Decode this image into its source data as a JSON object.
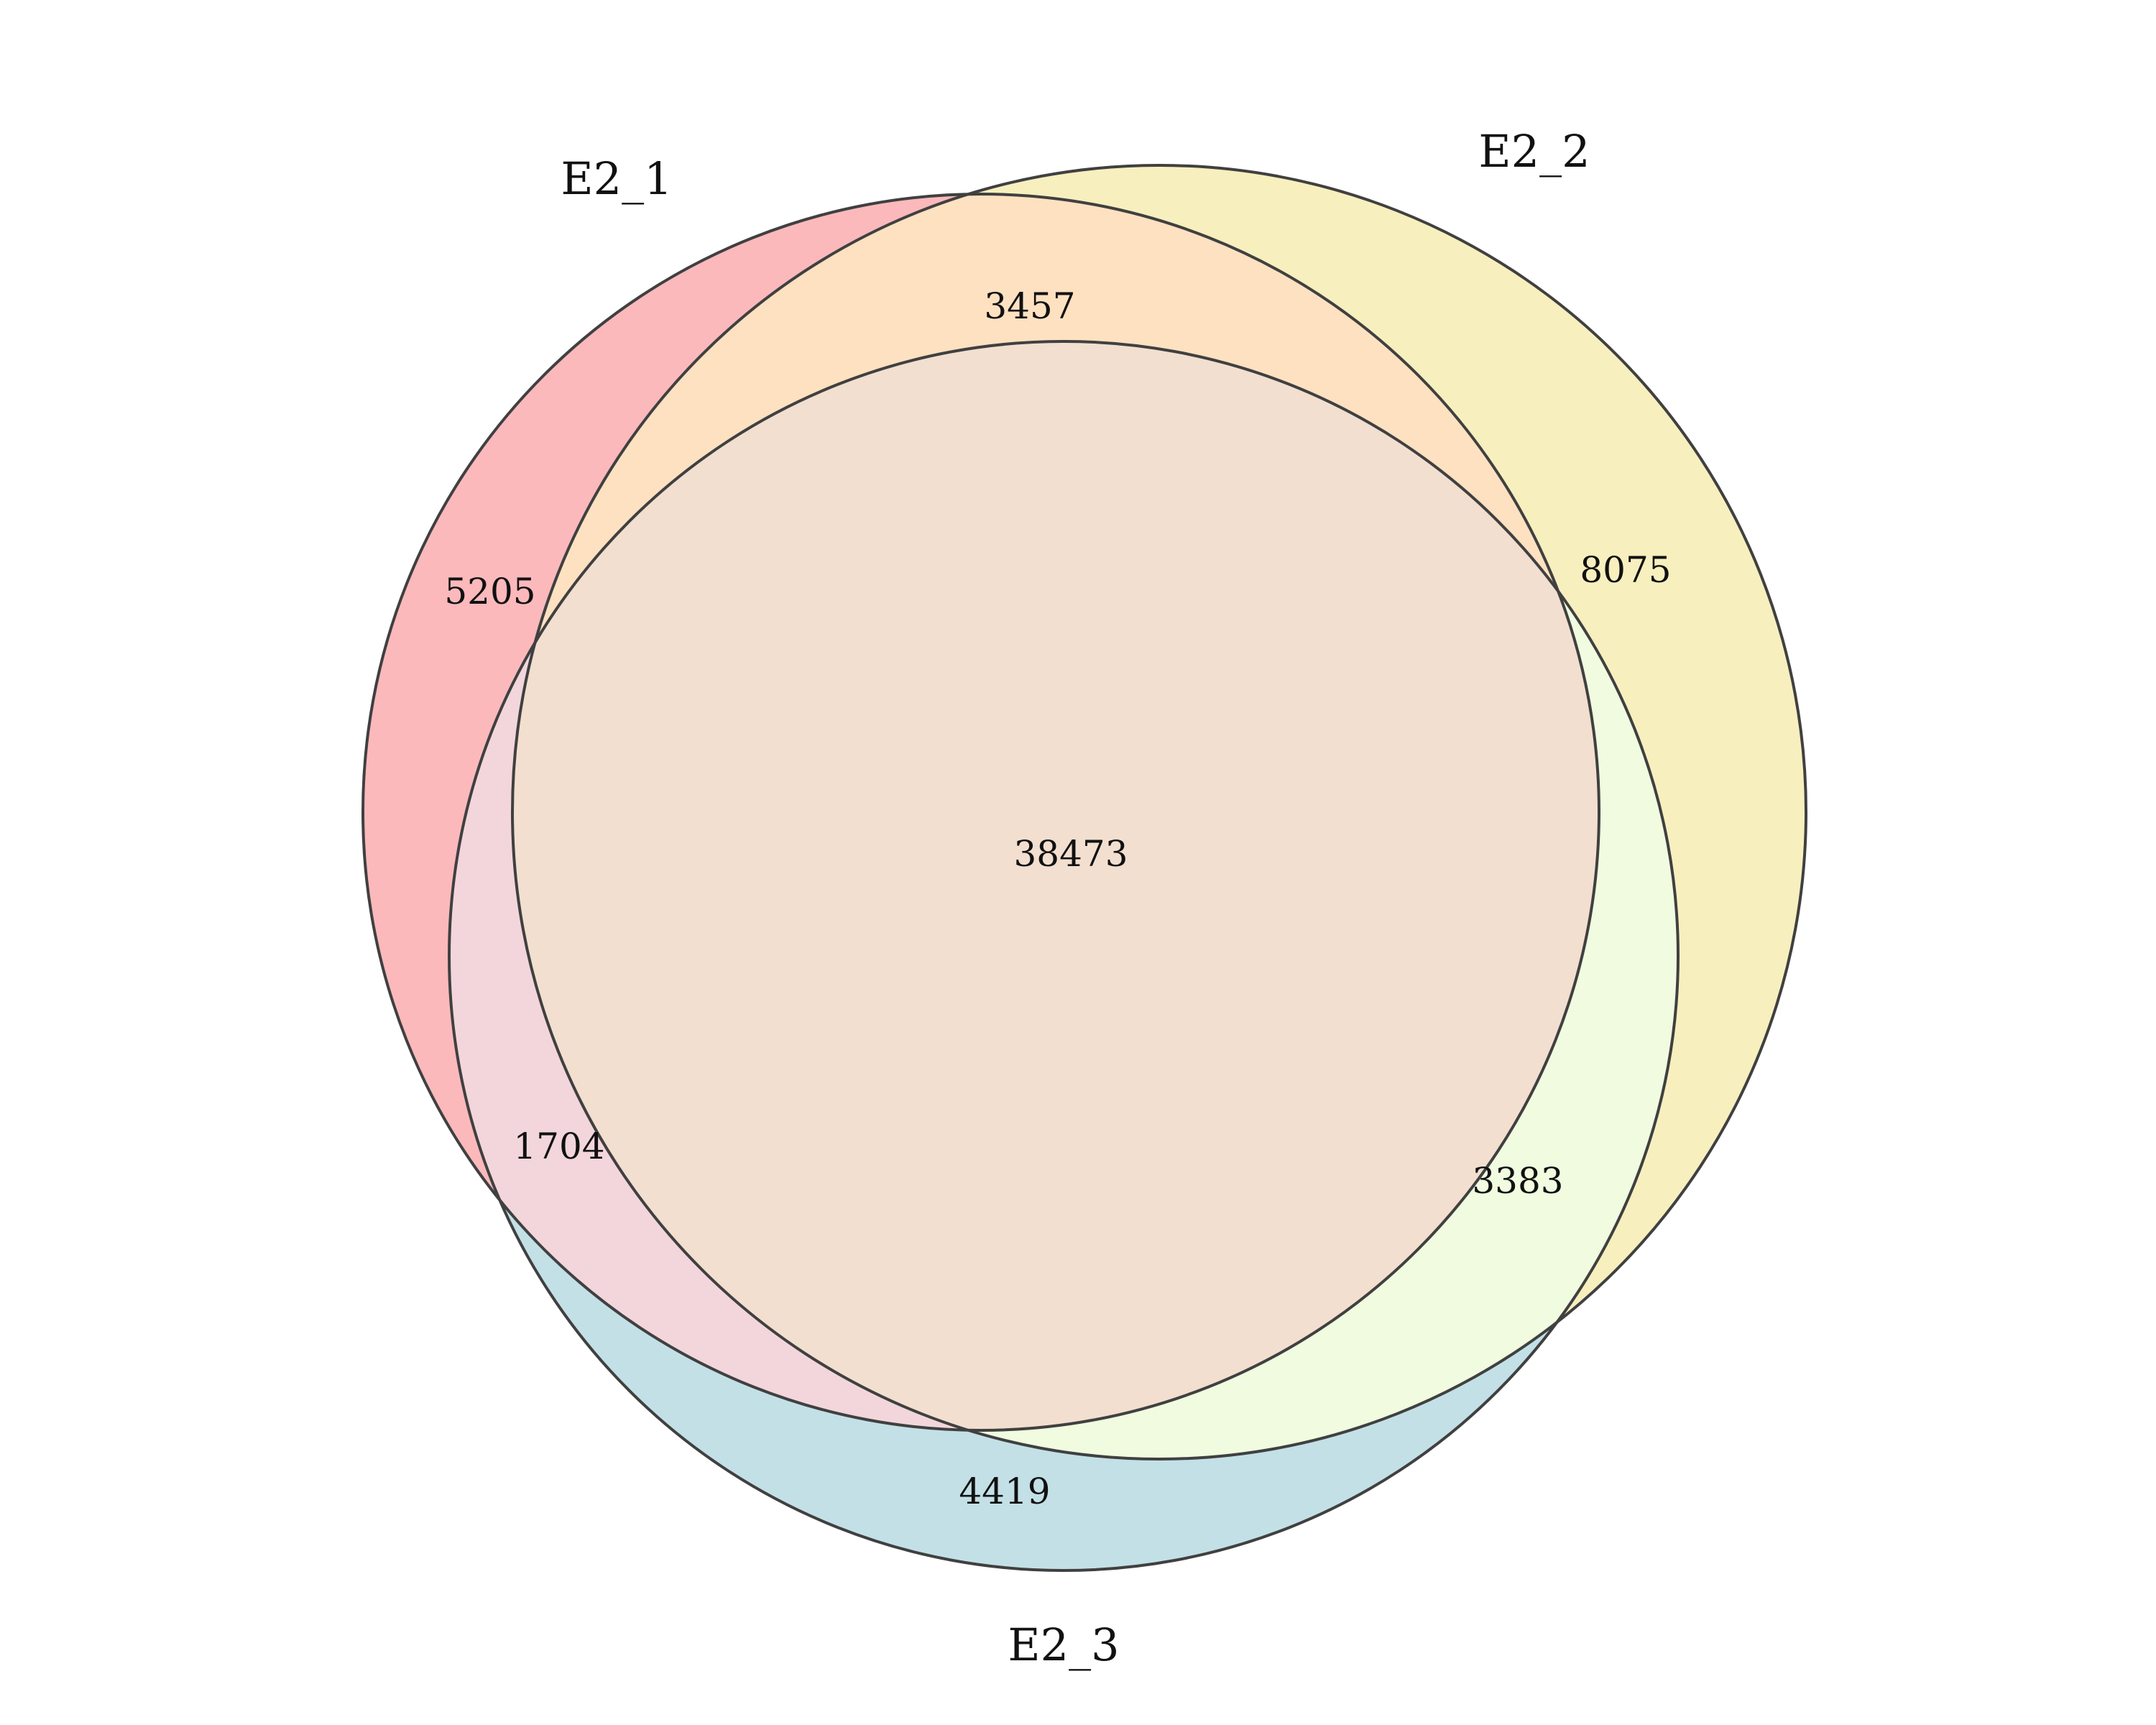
{
  "diagram": {
    "type": "venn3",
    "sets": [
      {
        "name": "E2_1",
        "color": "#f4676f"
      },
      {
        "name": "E2_2",
        "color": "#edd55b"
      },
      {
        "name": "E2_3",
        "color": "#86bfcd"
      }
    ],
    "regions": {
      "only_E2_1": "5205",
      "only_E2_2": "8075",
      "only_E2_3": "4419",
      "E2_1_E2_2": "3457",
      "E2_1_E2_3": "1704",
      "E2_2_E2_3": "3383",
      "E2_1_E2_2_E2_3": "38473"
    },
    "outline_color": "#404040"
  }
}
